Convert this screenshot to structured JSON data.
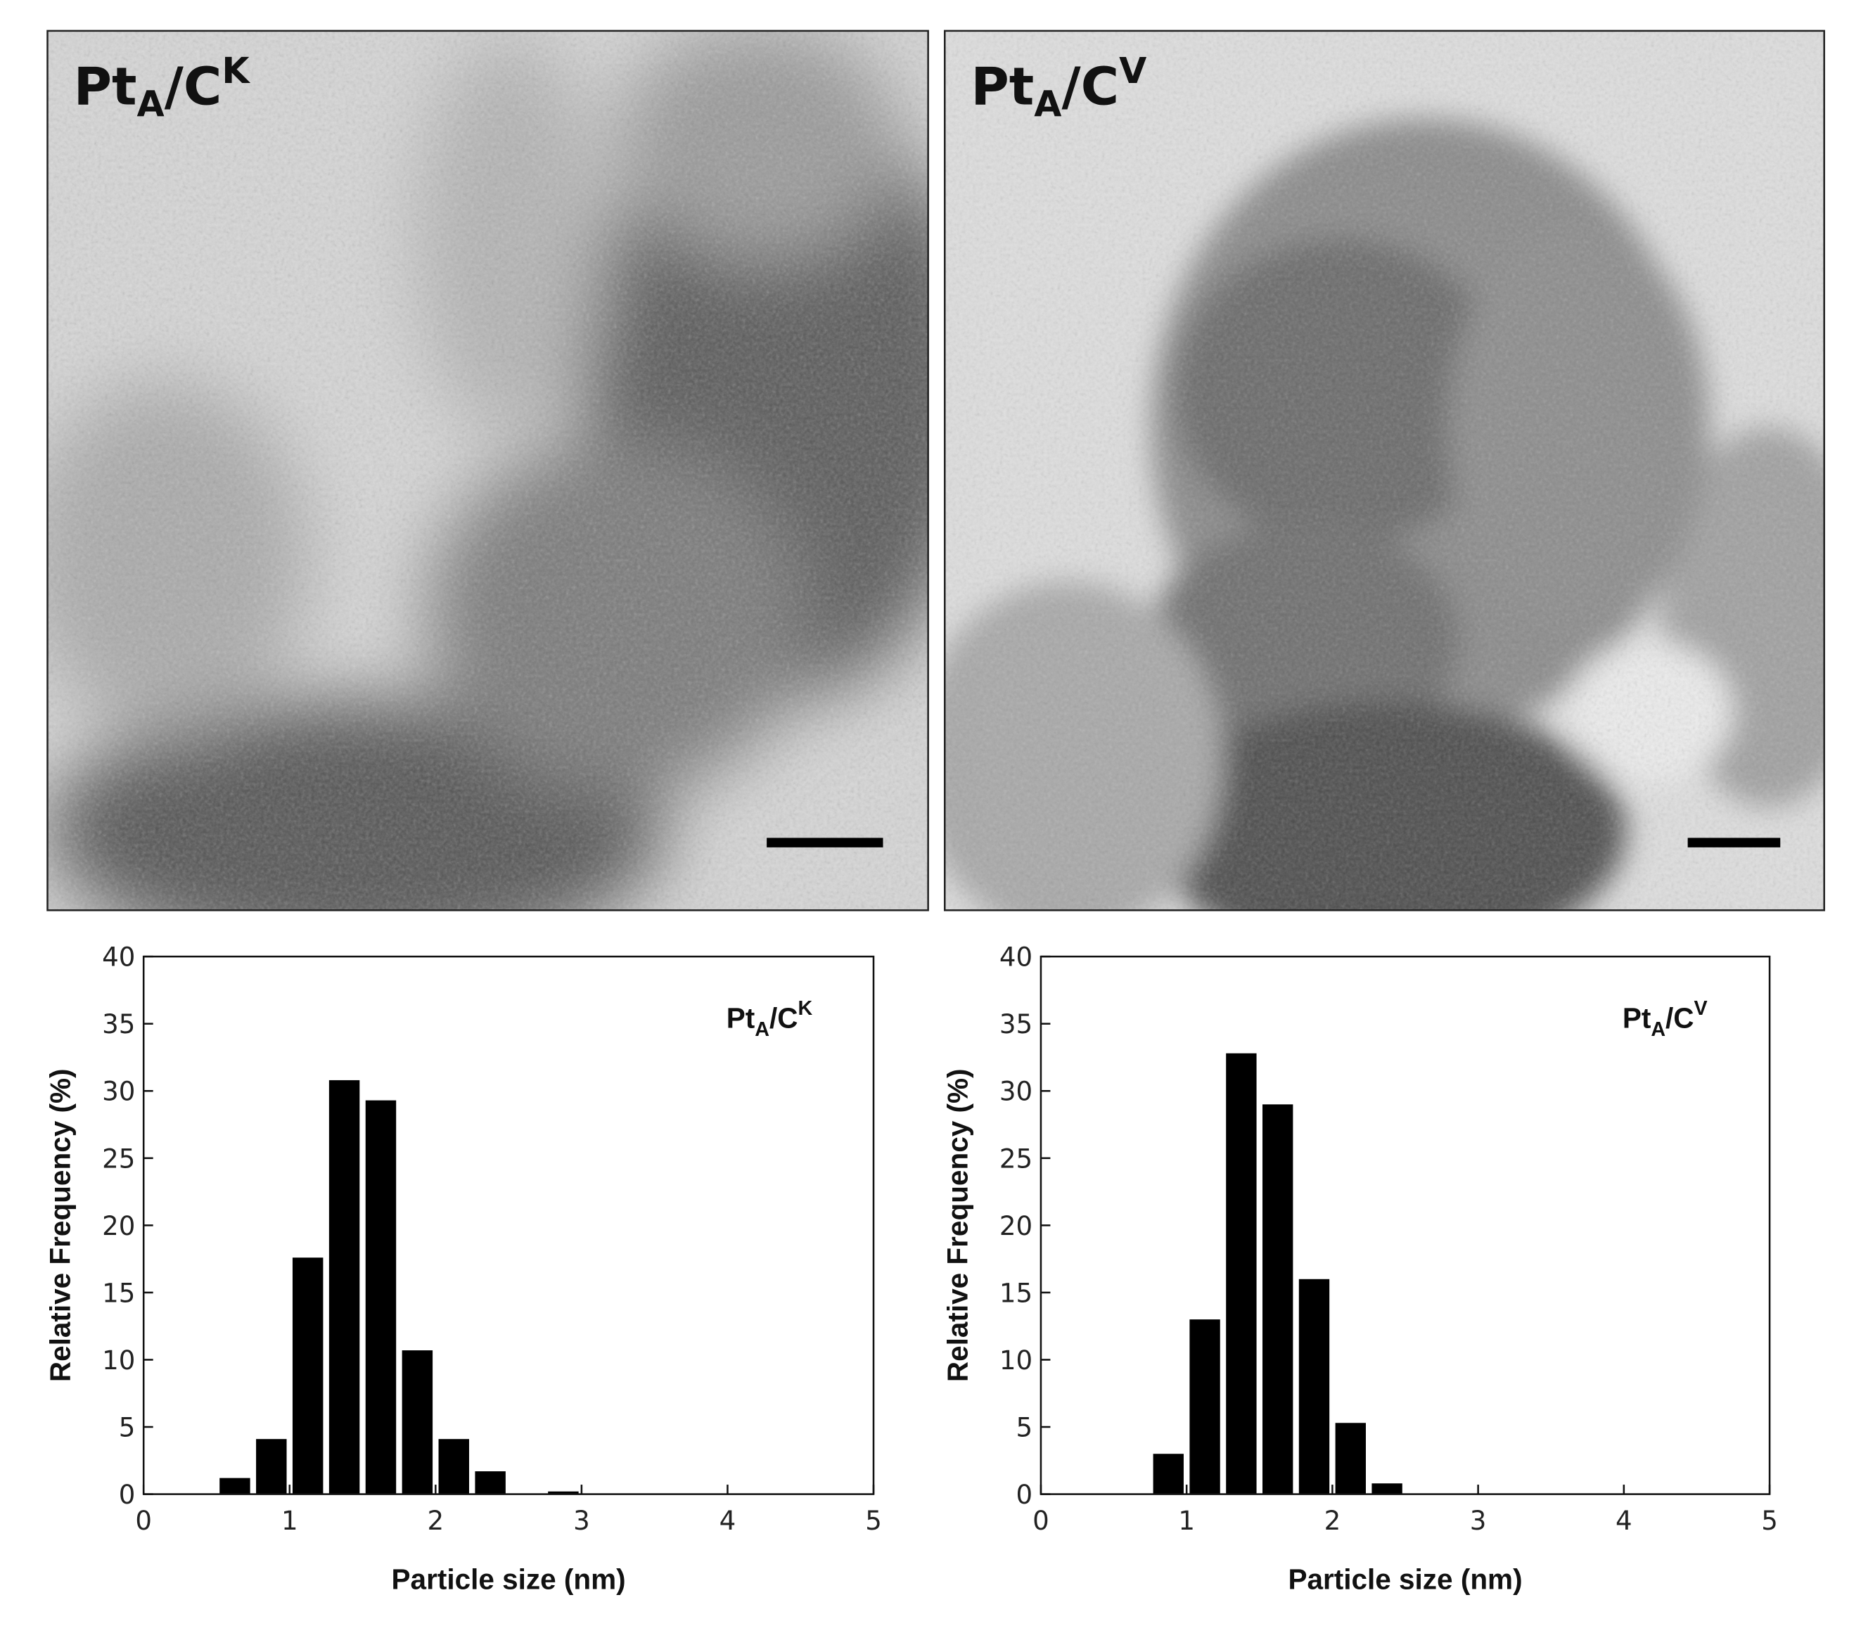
{
  "panels": [
    {
      "label": {
        "main": "Pt",
        "sub": "A",
        "mid": "/C",
        "sup": "K"
      }
    },
    {
      "label": {
        "main": "Pt",
        "sub": "A",
        "mid": "/C",
        "sup": "V"
      }
    }
  ],
  "chart_data": [
    {
      "type": "histogram",
      "label": {
        "main": "Pt",
        "sub": "A",
        "mid": "/C",
        "sup": "K"
      },
      "xlabel": "Particle size (nm)",
      "ylabel": "Relative Frequency (%)",
      "bins": [
        0.5,
        0.75,
        1.0,
        1.25,
        1.5,
        1.75,
        2.0,
        2.25,
        2.5,
        2.75,
        3.0
      ],
      "counts": [
        1.2,
        4.1,
        17.6,
        30.8,
        29.3,
        10.7,
        4.1,
        1.7,
        0,
        0.2
      ],
      "color": "#000000",
      "xlim": [
        0,
        5
      ],
      "ylim": [
        0,
        40
      ],
      "xticks": [
        0,
        1,
        2,
        3,
        4,
        5
      ],
      "yticks": [
        0,
        5,
        10,
        15,
        20,
        25,
        30,
        35,
        40
      ]
    },
    {
      "type": "histogram",
      "label": {
        "main": "Pt",
        "sub": "A",
        "mid": "/C",
        "sup": "V"
      },
      "xlabel": "Particle size (nm)",
      "ylabel": "Relative Frequency (%)",
      "bins": [
        0.75,
        1.0,
        1.25,
        1.5,
        1.75,
        2.0,
        2.25,
        2.5
      ],
      "counts": [
        3.0,
        13.0,
        32.8,
        29.0,
        16.0,
        5.3,
        0.8
      ],
      "color": "#000000",
      "xlim": [
        0,
        5
      ],
      "ylim": [
        0,
        40
      ],
      "xticks": [
        0,
        1,
        2,
        3,
        4,
        5
      ],
      "yticks": [
        0,
        5,
        10,
        15,
        20,
        25,
        30,
        35,
        40
      ]
    }
  ]
}
